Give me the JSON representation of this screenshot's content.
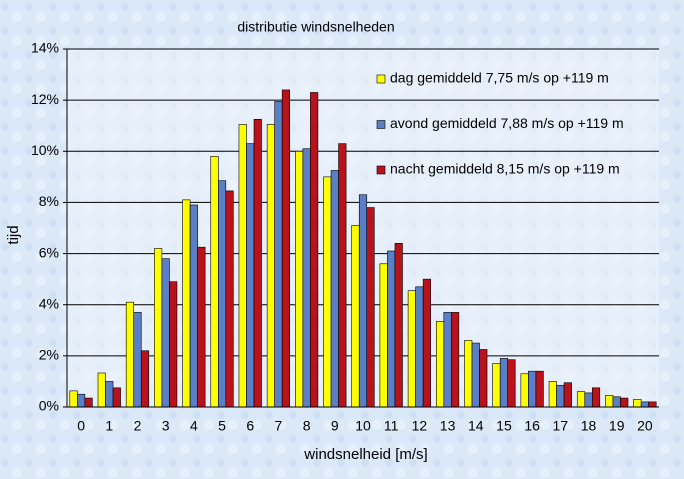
{
  "chart_data": {
    "type": "bar",
    "title": "distributie windsnelheden",
    "x_label": "windsnelheid [m/s]",
    "y_label": "tijd",
    "categories": [
      "0",
      "1",
      "2",
      "3",
      "4",
      "5",
      "6",
      "7",
      "8",
      "9",
      "10",
      "11",
      "12",
      "13",
      "14",
      "15",
      "16",
      "17",
      "18",
      "19",
      "20"
    ],
    "series": [
      {
        "name": "dag gemiddeld 7,75 m/s op +119 m",
        "color": "#ffff00",
        "values": [
          0.63,
          1.33,
          4.1,
          6.2,
          8.1,
          9.8,
          11.05,
          11.05,
          10.0,
          9.0,
          7.1,
          5.6,
          4.55,
          3.35,
          2.6,
          1.7,
          1.3,
          1.0,
          0.6,
          0.45,
          0.3
        ]
      },
      {
        "name": "avond gemiddeld 7,88 m/s op +119 m",
        "color": "#5b7fc6",
        "values": [
          0.5,
          1.0,
          3.7,
          5.8,
          7.9,
          8.85,
          10.3,
          11.95,
          10.1,
          9.25,
          8.3,
          6.1,
          4.7,
          3.7,
          2.5,
          1.9,
          1.4,
          0.85,
          0.55,
          0.4,
          0.2
        ]
      },
      {
        "name": "nacht gemiddeld 8,15 m/s op +119 m",
        "color": "#b8121b",
        "values": [
          0.35,
          0.75,
          2.2,
          4.9,
          6.25,
          8.45,
          11.25,
          12.4,
          12.3,
          10.3,
          7.8,
          6.4,
          5.0,
          3.7,
          2.25,
          1.85,
          1.4,
          0.95,
          0.75,
          0.35,
          0.2
        ]
      }
    ],
    "ylim": [
      0,
      14
    ],
    "yticks": [
      {
        "value": 0,
        "label": "0%"
      },
      {
        "value": 2,
        "label": "2%"
      },
      {
        "value": 4,
        "label": "4%"
      },
      {
        "value": 6,
        "label": "6%"
      },
      {
        "value": 8,
        "label": "8%"
      },
      {
        "value": 10,
        "label": "10%"
      },
      {
        "value": 12,
        "label": "12%"
      },
      {
        "value": 14,
        "label": "14%"
      }
    ],
    "grid": true,
    "legend": "top-right"
  }
}
